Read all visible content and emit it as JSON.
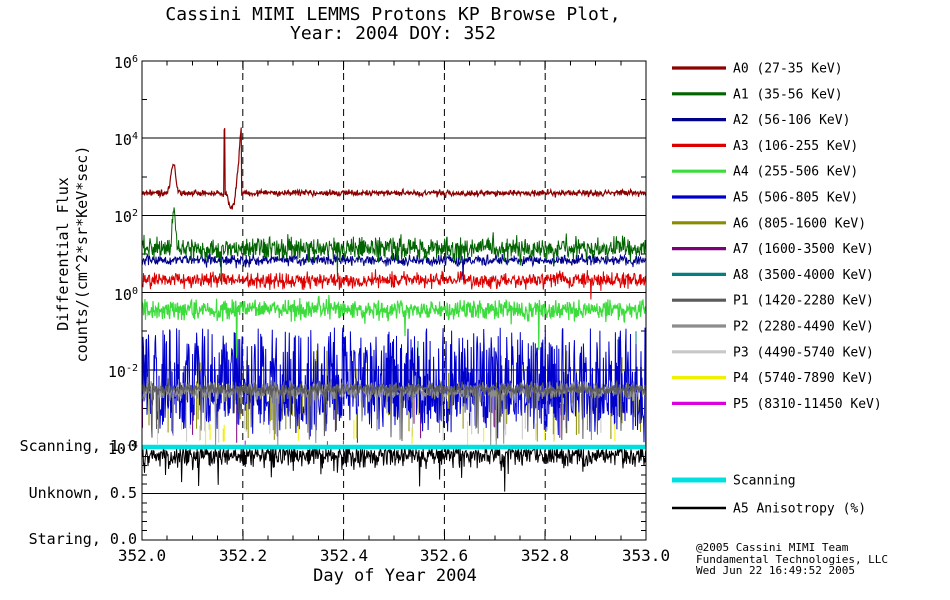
{
  "chart_data": {
    "type": "line",
    "title": {
      "line1": "Cassini MIMI LEMMS Protons KP Browse Plot,",
      "line2": "Year: 2004 DOY: 352"
    },
    "axes": {
      "x": {
        "label": "Day of Year 2004",
        "min": 352.0,
        "max": 353.0,
        "major_step": 0.2,
        "minor_step": 0.05,
        "tick_labels": [
          "352.0",
          "352.2",
          "352.4",
          "352.6",
          "352.8",
          "353.0"
        ],
        "grid_at": [
          352.2,
          352.4,
          352.6,
          352.8
        ],
        "grid_style": "dashed"
      },
      "flux": {
        "label_line1": "Differential Flux",
        "label_line2": "counts/(cm^2*sr*KeV*sec)",
        "scale": "log",
        "top_exponent": 6,
        "bottom_exponent": -4,
        "major_exponents": [
          6,
          4,
          2,
          0,
          -2,
          -4
        ],
        "minor_exponents": [
          5,
          3,
          1,
          -1,
          -3
        ],
        "grid_exponents": [
          4,
          2,
          0,
          -2,
          -4
        ]
      },
      "aniso": {
        "ticks": [
          {
            "label": "Scanning, 1.0",
            "value": 1.0
          },
          {
            "label": "Unknown, 0.5",
            "value": 0.5
          },
          {
            "label": "Staring, 0.0",
            "value": 0.0
          }
        ],
        "minor": [
          0.1,
          0.2,
          0.3,
          0.4,
          0.6,
          0.7,
          0.8,
          0.9
        ],
        "grid_at": [
          0.5
        ]
      }
    },
    "series": [
      {
        "id": "A0",
        "label": "A0 (27-35 KeV)",
        "color": "#8B0000",
        "plot": {
          "type": "band",
          "base": 2.58,
          "noise": 0.04,
          "width": 1.2,
          "bumps": [
            {
              "center": 352.062,
              "sigma": 0.0045,
              "amp": 0.75
            }
          ],
          "vspikes": [
            {
              "x": 352.1635,
              "halfwidth": 0.0012,
              "top": 4.27
            }
          ],
          "segments": [
            {
              "from": 352.167,
              "to": 352.175,
              "a": 2.58,
              "b": 2.18
            },
            {
              "from": 352.175,
              "to": 352.183,
              "a": 2.18,
              "b": 2.3
            },
            {
              "from": 352.183,
              "to": 352.191,
              "a": 2.3,
              "b": 3.3
            },
            {
              "from": 352.191,
              "to": 352.1972,
              "a": 3.3,
              "b": 4.42
            }
          ]
        },
        "notes": "baseline ~3.8e2; bump to ~2e3 at 352.06; spike ~1.9e4 at 352.164; dip to ~1.6e2; peak ~2.6e4 at 352.197"
      },
      {
        "id": "A1",
        "label": "A1 (35-56 KeV)",
        "color": "#006400",
        "plot": {
          "type": "band",
          "base": 1.15,
          "noise": 0.14,
          "width": 1,
          "bumps": [
            {
              "center": 352.0635,
              "sigma": 0.003,
              "amp": 1.15
            }
          ],
          "downspikes": {
            "prob": 0.004,
            "min": 0.3,
            "max": 1.0
          }
        },
        "notes": "baseline ~14; spike to ~2e2 at 352.063"
      },
      {
        "id": "A2",
        "label": "A2 (56-106 KeV)",
        "color": "#00008B",
        "plot": {
          "type": "band",
          "base": 0.84,
          "noise": 0.07,
          "width": 1,
          "downspikes": {
            "prob": 0.002,
            "min": 0.2,
            "max": 0.5
          }
        },
        "notes": "baseline ~7"
      },
      {
        "id": "A3",
        "label": "A3 (106-255 KeV)",
        "color": "#DC0000",
        "plot": {
          "type": "band",
          "base": 0.32,
          "noise": 0.1,
          "width": 1,
          "downspikes": {
            "prob": 0.005,
            "min": 0.2,
            "max": 0.9
          }
        },
        "notes": "baseline ~2"
      },
      {
        "id": "A4",
        "label": "A4 (255-506 KeV)",
        "color": "#3CDC3C",
        "plot": {
          "type": "band",
          "base": -0.44,
          "noise": 0.13,
          "width": 1.2,
          "downspikes": {
            "prob": 0.005,
            "min": 0.3,
            "max": 1.9
          }
        },
        "notes": "baseline ~0.36"
      },
      {
        "id": "A5",
        "label": "A5 (506-805 KeV)",
        "color": "#0000CD",
        "plot": {
          "type": "comb",
          "floor": -3.0,
          "floorNoise": 0.3,
          "spikeProb": 0.42,
          "spikeTop": [
            -2.4,
            -0.9
          ],
          "width": 1
        },
        "notes": "dense spikes between ~1e-3 and ~1e-1"
      },
      {
        "id": "A6",
        "label": "A6 (805-1600 KeV)",
        "color": "#8B8B00",
        "plot": {
          "type": "ticks",
          "prob": 0.045,
          "top": [
            -1.5,
            -2.7
          ],
          "bottom": [
            -3.0,
            -3.85
          ],
          "width": 1
        },
        "notes": "sparse vertical excursions ~3e-2 to ~1e-4"
      },
      {
        "id": "A7",
        "label": "A7 (1600-3500 KeV)",
        "color": "#7A007A",
        "plot": {
          "type": "ticks",
          "prob": 0.018,
          "top": [
            -2.5,
            -2.9
          ],
          "bottom": [
            -3.1,
            -3.9
          ],
          "width": 1
        },
        "notes": "sparse spikes ~3e-3 to ~1e-4"
      },
      {
        "id": "A8",
        "label": "A8 (3500-4000 KeV)",
        "color": "#008080",
        "plot": {
          "type": "ticks",
          "prob": 0.002,
          "top": [
            -1.0,
            -1.3
          ],
          "bottom": [
            -1.8,
            -2.6
          ],
          "width": 1
        },
        "notes": "barely visible, rare spikes"
      },
      {
        "id": "P1",
        "label": "P1 (1420-2280 KeV)",
        "color": "#5A5A5A",
        "plot": {
          "type": "band",
          "base": -2.5,
          "noise": 0.08,
          "width": 1,
          "downspikes": {
            "prob": 0.02,
            "min": 0.3,
            "max": 1.4
          }
        },
        "notes": "band ~3e-3"
      },
      {
        "id": "P2",
        "label": "P2 (2280-4490 KeV)",
        "color": "#8C8C8C",
        "plot": {
          "type": "band",
          "base": -2.56,
          "noise": 0.12,
          "width": 1,
          "downspikes": {
            "prob": 0.025,
            "min": 0.3,
            "max": 1.38
          }
        },
        "notes": "band ~3e-3 with drops toward 1e-4"
      },
      {
        "id": "P3",
        "label": "P3 (4490-5740 KeV)",
        "color": "#C8C8C8",
        "plot": {
          "type": "ticks",
          "prob": 0.012,
          "top": [
            -2.55,
            -3.0
          ],
          "bottom": [
            -3.5,
            -3.93
          ],
          "width": 1
        },
        "notes": "sparse spikes near bottom"
      },
      {
        "id": "P4",
        "label": "P4 (5740-7890 KeV)",
        "color": "#F0F000",
        "plot": {
          "type": "ticks",
          "prob": 0.014,
          "top": [
            -3.2,
            -3.6
          ],
          "bottom": [
            -3.8,
            -3.95
          ],
          "width": 1
        },
        "notes": "sparse short spikes just above 1e-4"
      },
      {
        "id": "P5",
        "label": "P5 (8310-11450 KeV)",
        "color": "#DC00DC",
        "plot": {
          "type": "ticks",
          "prob": 0.004,
          "top": [
            -3.82,
            -3.88
          ],
          "bottom": [
            -3.92,
            -3.96
          ],
          "width": 1
        },
        "notes": "barely visible near 1e-4"
      }
    ],
    "overlays": {
      "scanning": {
        "label": "Scanning",
        "color": "#00E0E0",
        "value": 1.0,
        "width": 4.5
      },
      "anisotropy": {
        "label": "A5 Anisotropy (%)",
        "color": "#000000",
        "typicalDepth": 0.1,
        "deepProb": 0.012,
        "deepMin": 0.12,
        "deepMax": 0.42,
        "min": 0.52,
        "notes": "noisy trace hanging from 1.0, mostly 0.8-1.0, dips to ~0.55"
      }
    },
    "credit": [
      "@2005 Cassini MIMI Team",
      "Fundamental Technologies, LLC",
      "Wed Jun 22 16:49:52 2005"
    ]
  }
}
